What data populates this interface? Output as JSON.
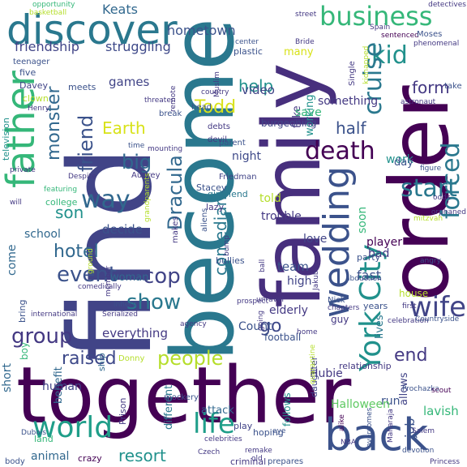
{
  "words": [
    "together",
    "find",
    "become",
    "family",
    "order",
    "discover",
    "back",
    "father",
    "business",
    "wedding",
    "life",
    "world",
    "wife",
    "York City",
    "way",
    "kid",
    "start",
    "forced",
    "cruise",
    "death",
    "group",
    "event",
    "cop",
    "show",
    "people",
    "friend",
    "monster",
    "hotel",
    "end",
    "Dracula",
    "raised",
    "resort",
    "Earth",
    "big",
    "half",
    "son",
    "go",
    "help",
    "comedian",
    "Todd",
    "form",
    "Keats",
    "hometown",
    "friendship",
    "struggling",
    "games",
    "video",
    "television",
    "school",
    "come",
    "decide",
    "woman",
    "everything",
    "human",
    "animal",
    "short",
    "team",
    "high",
    "fast",
    "bad",
    "job",
    "allows",
    "lives",
    "run",
    "Hubie",
    "Halloween",
    "attack",
    "elderly",
    "trouble",
    "love",
    "player",
    "soon",
    "work",
    "day",
    "night",
    "told",
    "many",
    "working",
    "fake",
    "something",
    "save",
    "burgeoning",
    "plastic",
    "bring",
    "boy",
    "ship",
    "Count",
    "guy",
    "football",
    "relationship",
    "lavish",
    "Nick",
    "years",
    "party",
    "house",
    "different",
    "benefit",
    "follows",
    "daughter",
    "hoping",
    "play",
    "criminal",
    "crazy",
    "land",
    "body",
    "Prison",
    "Donny",
    "lazy",
    "aliens",
    "bullies",
    "Stacey",
    "girlfriend",
    "Friedman",
    "parent",
    "devil",
    "debts",
    "break",
    "head",
    "Audrey",
    "makes",
    "college",
    "meets",
    "five",
    "clown",
    "Davey",
    "teenager",
    "remote",
    "country",
    "threaten",
    "astronaut",
    "take",
    "sentenced",
    "phenomenal",
    "Moses",
    "Spain",
    "detectives",
    "street",
    "basketball",
    "opportunity",
    "Bride",
    "center",
    "Single",
    "kidnapped",
    "odds",
    "figure",
    "orphaned",
    "mitzvah",
    "abduction",
    "angry",
    "first",
    "celebration",
    "Countryside",
    "Prochazka",
    "scout",
    "Maharaja",
    "Salem",
    "overcomes",
    "devotion",
    "Princess",
    "NBA",
    "alike",
    "eye",
    "remake",
    "old",
    "prepares",
    "Czech",
    "Dubois",
    "member",
    "international",
    "comedically",
    "Serialized",
    "inherit",
    "grandparents",
    "ground",
    "featuring",
    "will",
    "private",
    "Despite",
    "time",
    "mounting",
    "Henry",
    "going",
    "prospect",
    "unravel",
    "home",
    "chapters",
    "Jakub",
    "ball",
    "agency",
    "quarantine",
    "mockery",
    "celebrities",
    "bump",
    "Muslim"
  ]
}
